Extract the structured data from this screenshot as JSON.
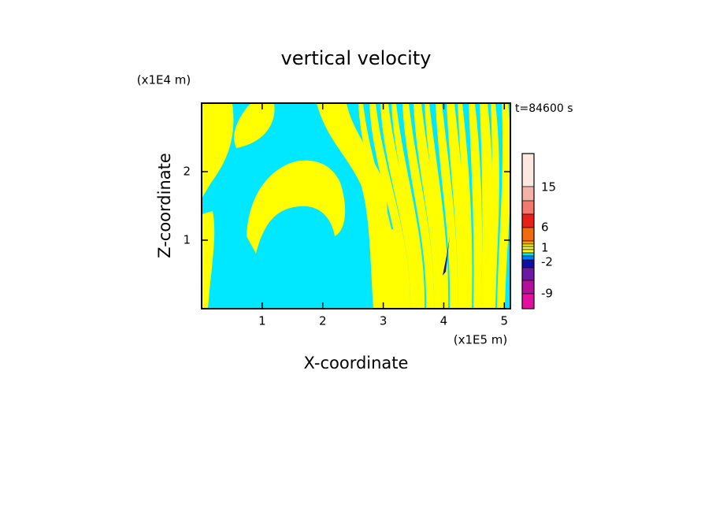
{
  "chart_data": {
    "type": "contour",
    "title": "vertical velocity",
    "y_unit": "(x1E4 m)",
    "x_unit": "(x1E5 m)",
    "time_label": "t=84600 s",
    "xlabel": "X-coordinate",
    "ylabel": "Z-coordinate",
    "xlim": [
      0,
      5.1
    ],
    "ylim": [
      0,
      3
    ],
    "xticks": [
      1,
      2,
      3,
      4,
      5
    ],
    "yticks": [
      1,
      2
    ],
    "field_colors": [
      "#00e8ff",
      "#ffff00"
    ],
    "colorbar": {
      "colors": [
        "#fde8e0",
        "#f4b3a8",
        "#f07a6e",
        "#e8201a",
        "#f06a10",
        "#ff9900",
        "#ffff00",
        "#e8e860",
        "#ffff00",
        "#00e5ff",
        "#0080ff",
        "#1010a0",
        "#6a1aa0",
        "#b0109a",
        "#e010a0"
      ],
      "ticks": [
        15,
        6,
        1,
        -2,
        -9
      ]
    }
  }
}
